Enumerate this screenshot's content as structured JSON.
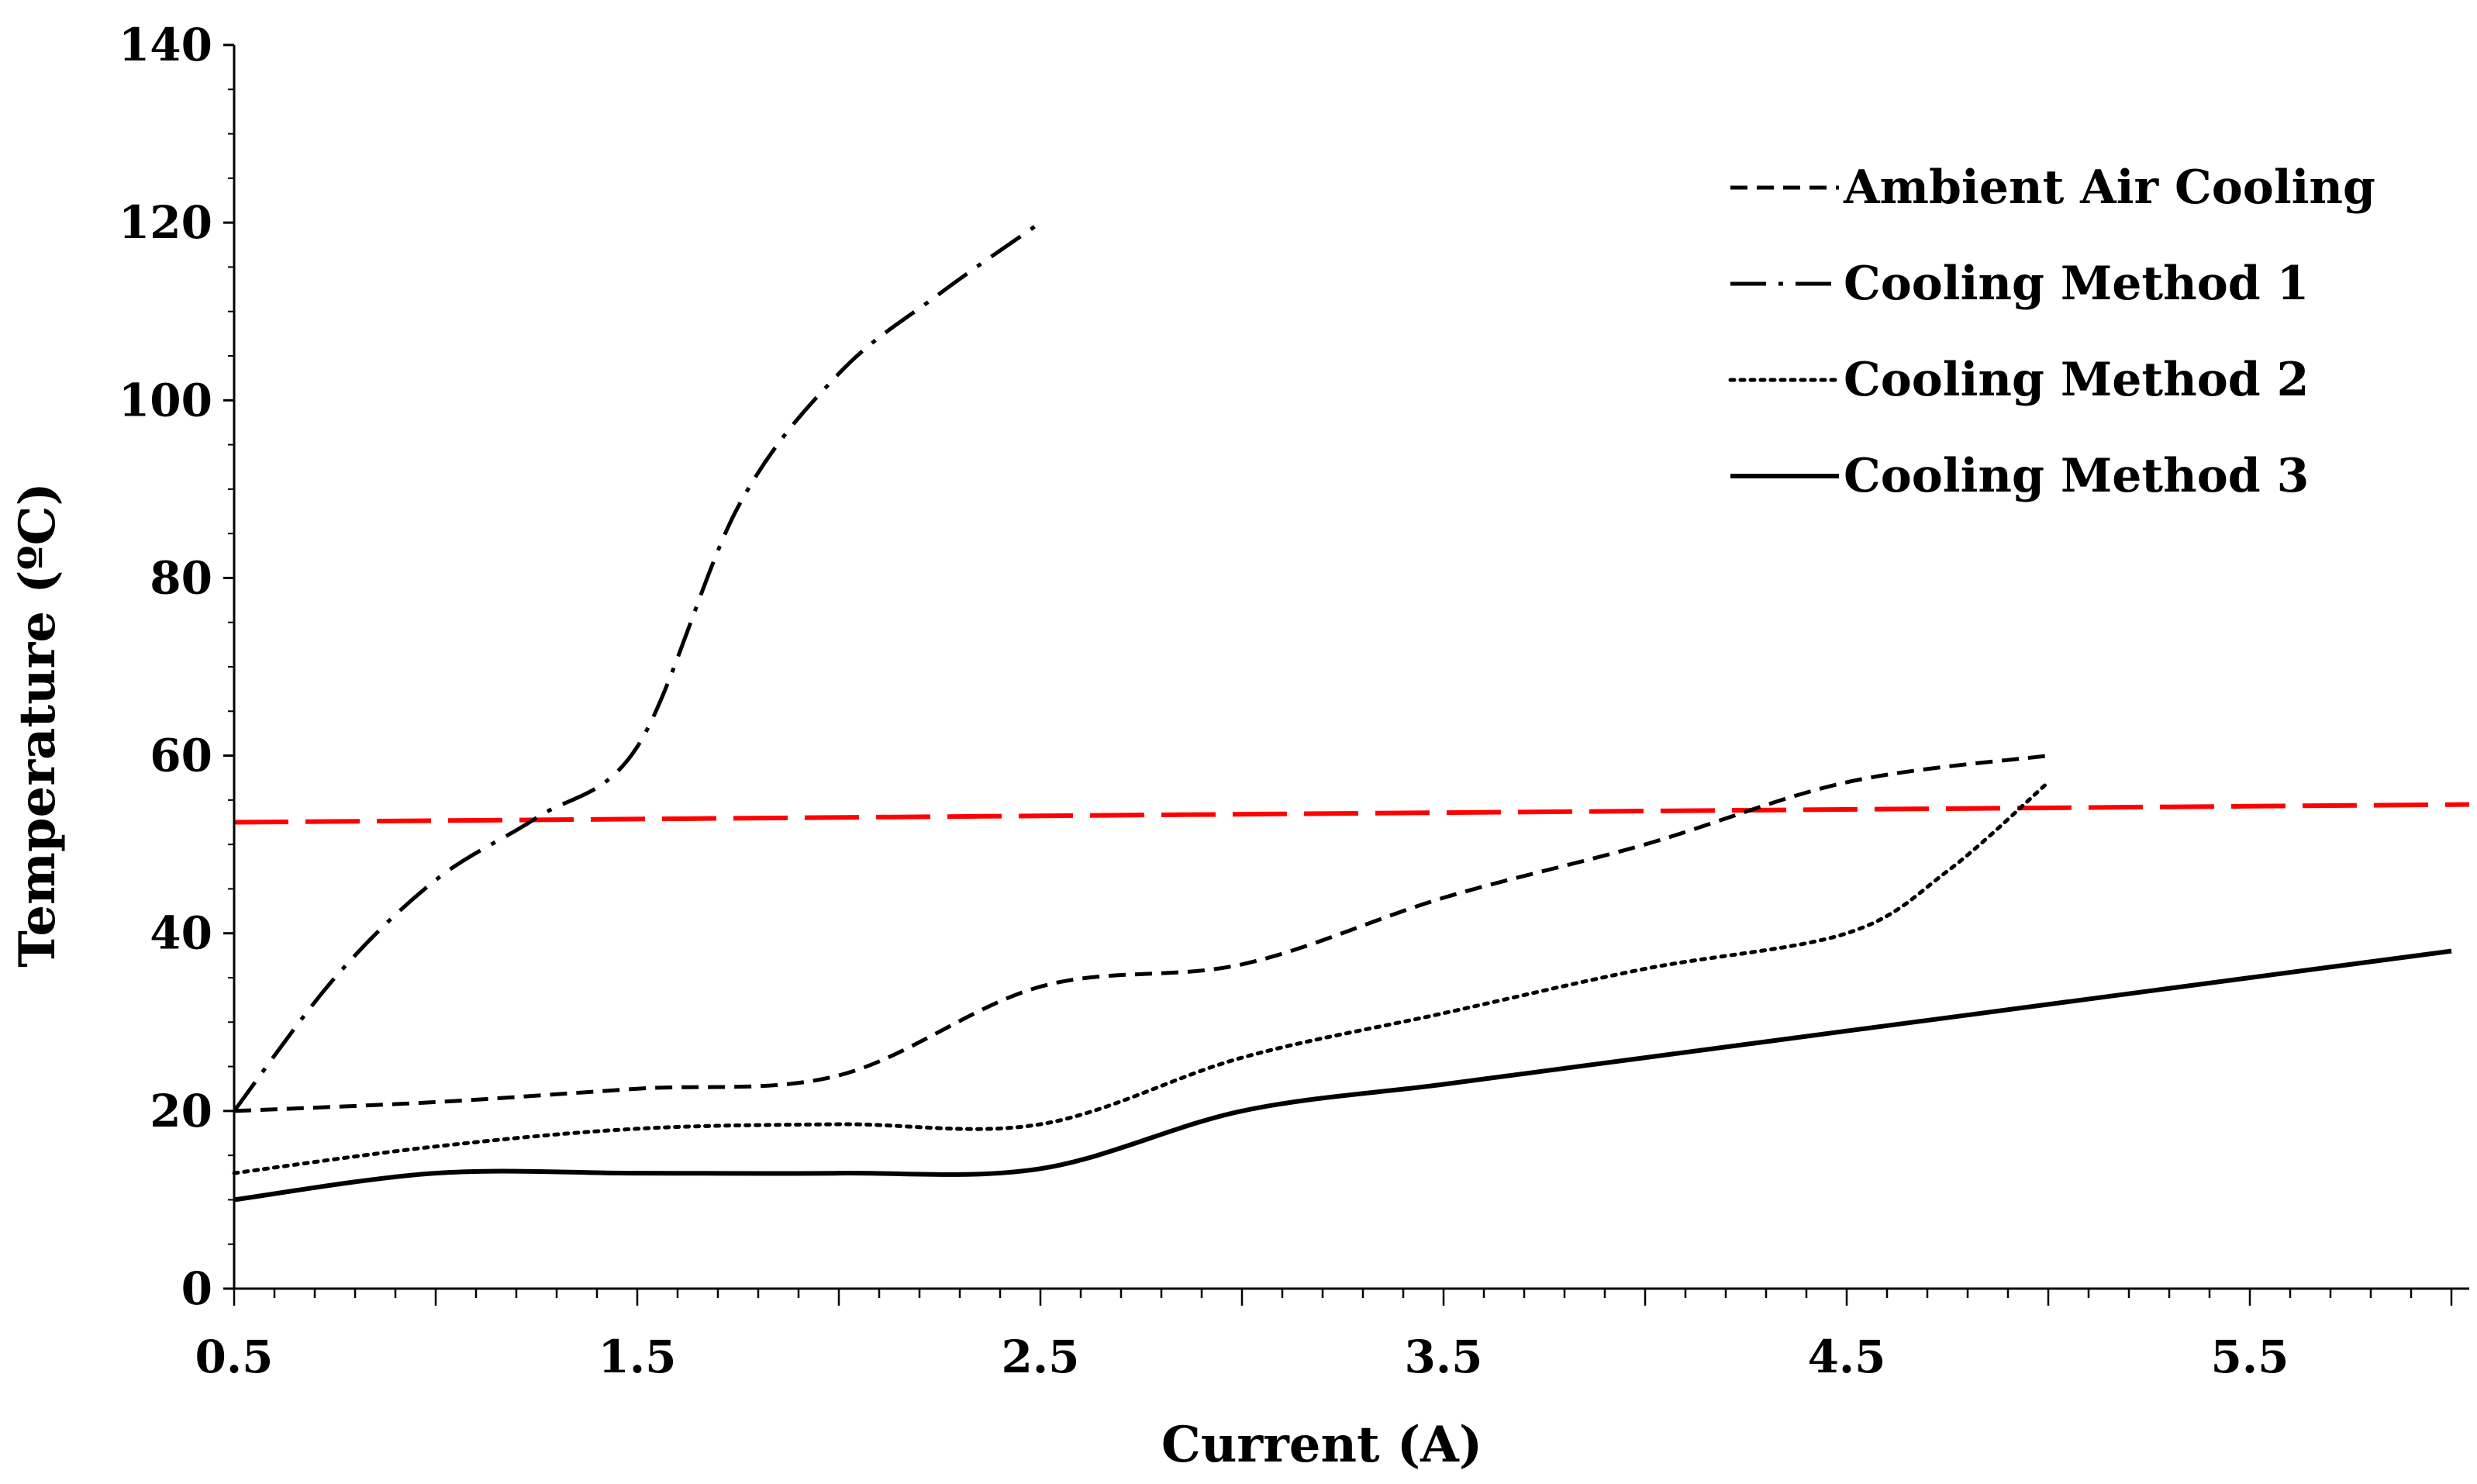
{
  "chart_data": {
    "type": "line",
    "title": "",
    "xlabel": "Current (A)",
    "ylabel": "Temperature (ºC)",
    "xlim": [
      0.5,
      6.0
    ],
    "ylim": [
      0,
      140
    ],
    "x_ticks": [
      "0.5",
      "1.5",
      "2.5",
      "3.5",
      "4.5",
      "5.5"
    ],
    "y_ticks": [
      "0",
      "20",
      "40",
      "60",
      "80",
      "100",
      "120",
      "140"
    ],
    "legend_position": "top-right",
    "series": [
      {
        "name": "Ambient Air Cooling",
        "style": "dashed",
        "color": "#000000",
        "x": [
          0.5,
          1.0,
          1.5,
          2.0,
          2.5,
          3.0,
          3.5,
          4.0,
          4.5,
          5.0
        ],
        "y": [
          20,
          21,
          22.5,
          24,
          34,
          36.5,
          44,
          50,
          57,
          60
        ]
      },
      {
        "name": "Cooling Method 1",
        "style": "dashdot",
        "color": "#000000",
        "x": [
          0.5,
          0.75,
          1.0,
          1.25,
          1.5,
          1.75,
          2.0,
          2.25,
          2.5
        ],
        "y": [
          20,
          35,
          46,
          53,
          61,
          88,
          103,
          112,
          120
        ]
      },
      {
        "name": "Cooling Method 2",
        "style": "dotted",
        "color": "#000000",
        "x": [
          0.5,
          1.0,
          1.5,
          2.0,
          2.5,
          3.0,
          3.5,
          4.0,
          4.5,
          4.75,
          5.0
        ],
        "y": [
          13,
          16,
          18,
          18.5,
          18.5,
          26,
          31,
          36,
          40,
          47,
          57
        ]
      },
      {
        "name": "Cooling Method 3",
        "style": "solid",
        "color": "#000000",
        "x": [
          0.5,
          1.0,
          1.5,
          2.0,
          2.5,
          3.0,
          3.5,
          4.0,
          4.5,
          5.0,
          5.5,
          6.0
        ],
        "y": [
          10,
          13,
          13,
          13,
          13.5,
          20,
          23,
          26,
          29,
          32,
          35,
          38
        ]
      }
    ],
    "reference_line": {
      "style": "long-dash",
      "color": "#ff0000",
      "x": [
        0.5,
        6.0
      ],
      "y": [
        52.5,
        54.5
      ]
    }
  }
}
